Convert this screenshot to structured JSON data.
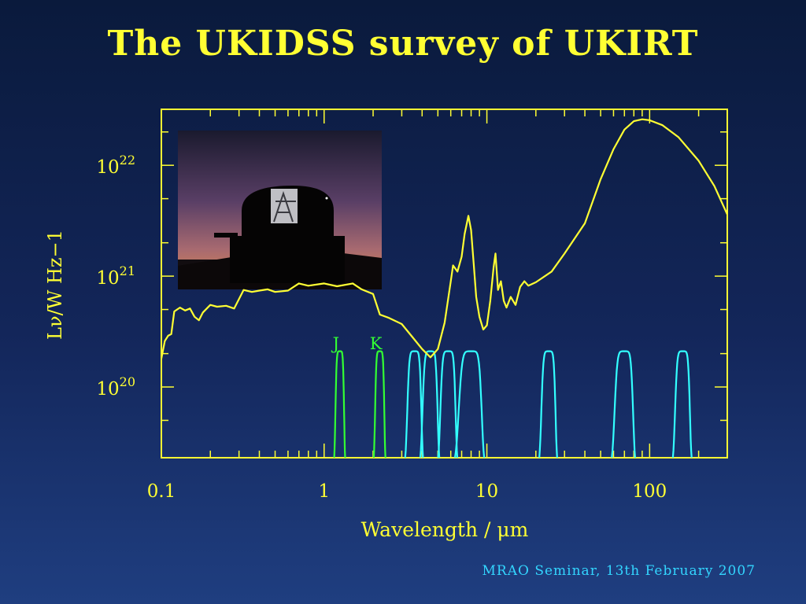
{
  "slide": {
    "title": "The UKIDSS survey of UKIRT",
    "footer": "MRAO Seminar, 13th February 2007"
  },
  "colors": {
    "sed": "#ffff33",
    "ukidss_filters": "#33ff33",
    "other_filters": "#33ffff",
    "axes": "#ffff33"
  },
  "inset_photo": {
    "icon": "telescope-dome-photo"
  },
  "chart_data": {
    "type": "line",
    "xlabel": "Wavelength / μm",
    "ylabel": "Lν/W Hz−1",
    "xscale": "log",
    "yscale": "log",
    "xlim": [
      0.1,
      300
    ],
    "ylim": [
      2.3e+19,
      3.2e+22
    ],
    "x_ticks": [
      {
        "value": 0.1,
        "label": "0.1"
      },
      {
        "value": 1,
        "label": "1"
      },
      {
        "value": 10,
        "label": "10"
      },
      {
        "value": 100,
        "label": "100"
      }
    ],
    "y_ticks": [
      {
        "value": 1e+20,
        "base": "10",
        "exp": "20"
      },
      {
        "value": 1e+21,
        "base": "10",
        "exp": "21"
      },
      {
        "value": 1e+22,
        "base": "10",
        "exp": "22"
      }
    ],
    "sed": {
      "x": [
        0.1,
        0.105,
        0.11,
        0.115,
        0.12,
        0.13,
        0.14,
        0.15,
        0.16,
        0.17,
        0.18,
        0.2,
        0.22,
        0.25,
        0.28,
        0.32,
        0.36,
        0.4,
        0.45,
        0.5,
        0.6,
        0.7,
        0.8,
        1.0,
        1.2,
        1.5,
        1.7,
        2.0,
        2.2,
        2.5,
        3.0,
        3.5,
        4.0,
        4.5,
        5.0,
        5.5,
        6.0,
        6.2,
        6.6,
        7.0,
        7.3,
        7.7,
        8.0,
        8.3,
        8.6,
        9.0,
        9.5,
        10.0,
        10.5,
        11.0,
        11.3,
        11.7,
        12.2,
        12.7,
        13.2,
        14.0,
        15.0,
        16.0,
        17.0,
        18.0,
        20.0,
        25.0,
        30.0,
        40.0,
        50.0,
        60.0,
        70.0,
        80.0,
        90.0,
        100.0,
        120.0,
        150.0,
        200.0,
        250.0,
        300.0
      ],
      "y": [
        1.8e+20,
        2.6e+20,
        2.9e+20,
        3e+20,
        4.8e+20,
        5.2e+20,
        4.9e+20,
        5.1e+20,
        4.3e+20,
        4e+20,
        4.7e+20,
        5.5e+20,
        5.3e+20,
        5.4e+20,
        5.1e+20,
        7.5e+20,
        7.2e+20,
        7.4e+20,
        7.6e+20,
        7.2e+20,
        7.4e+20,
        8.6e+20,
        8.2e+20,
        8.6e+20,
        8.1e+20,
        8.6e+20,
        7.6e+20,
        6.9e+20,
        4.5e+20,
        4.2e+20,
        3.7e+20,
        2.8e+20,
        2.2e+20,
        1.85e+20,
        2.2e+20,
        3.8e+20,
        9e+20,
        1.25e+21,
        1.1e+21,
        1.5e+21,
        2.4e+21,
        3.5e+21,
        2.6e+21,
        1.3e+21,
        6.5e+20,
        4.3e+20,
        3.3e+20,
        3.6e+20,
        6e+20,
        1.2e+21,
        1.6e+21,
        7.5e+20,
        9e+20,
        6e+20,
        5.2e+20,
        6.5e+20,
        5.5e+20,
        8e+20,
        9e+20,
        8.2e+20,
        8.8e+20,
        1.1e+21,
        1.6e+21,
        3e+21,
        7.5e+21,
        1.4e+22,
        2.1e+22,
        2.5e+22,
        2.6e+22,
        2.55e+22,
        2.3e+22,
        1.8e+22,
        1.1e+22,
        6.5e+21,
        3.6e+21
      ]
    },
    "filters": [
      {
        "name": "J",
        "group": "ukidss",
        "center": 1.25,
        "width": 0.16,
        "peak": 2.1e+20
      },
      {
        "name": "K",
        "group": "ukidss",
        "center": 2.2,
        "width": 0.3,
        "peak": 2.1e+20
      },
      {
        "group": "other",
        "center": 3.6,
        "width": 0.75,
        "peak": 2.1e+20
      },
      {
        "group": "other",
        "center": 4.5,
        "width": 1.0,
        "peak": 2.1e+20
      },
      {
        "group": "other",
        "center": 5.8,
        "width": 1.3,
        "peak": 2.1e+20
      },
      {
        "group": "other",
        "center": 8.0,
        "width": 2.7,
        "peak": 2.1e+20
      },
      {
        "group": "other",
        "center": 24.0,
        "width": 5.0,
        "peak": 2.1e+20
      },
      {
        "group": "other",
        "center": 70.0,
        "width": 19.0,
        "peak": 2.1e+20
      },
      {
        "group": "other",
        "center": 160.0,
        "width": 35.0,
        "peak": 2.1e+20
      }
    ]
  }
}
